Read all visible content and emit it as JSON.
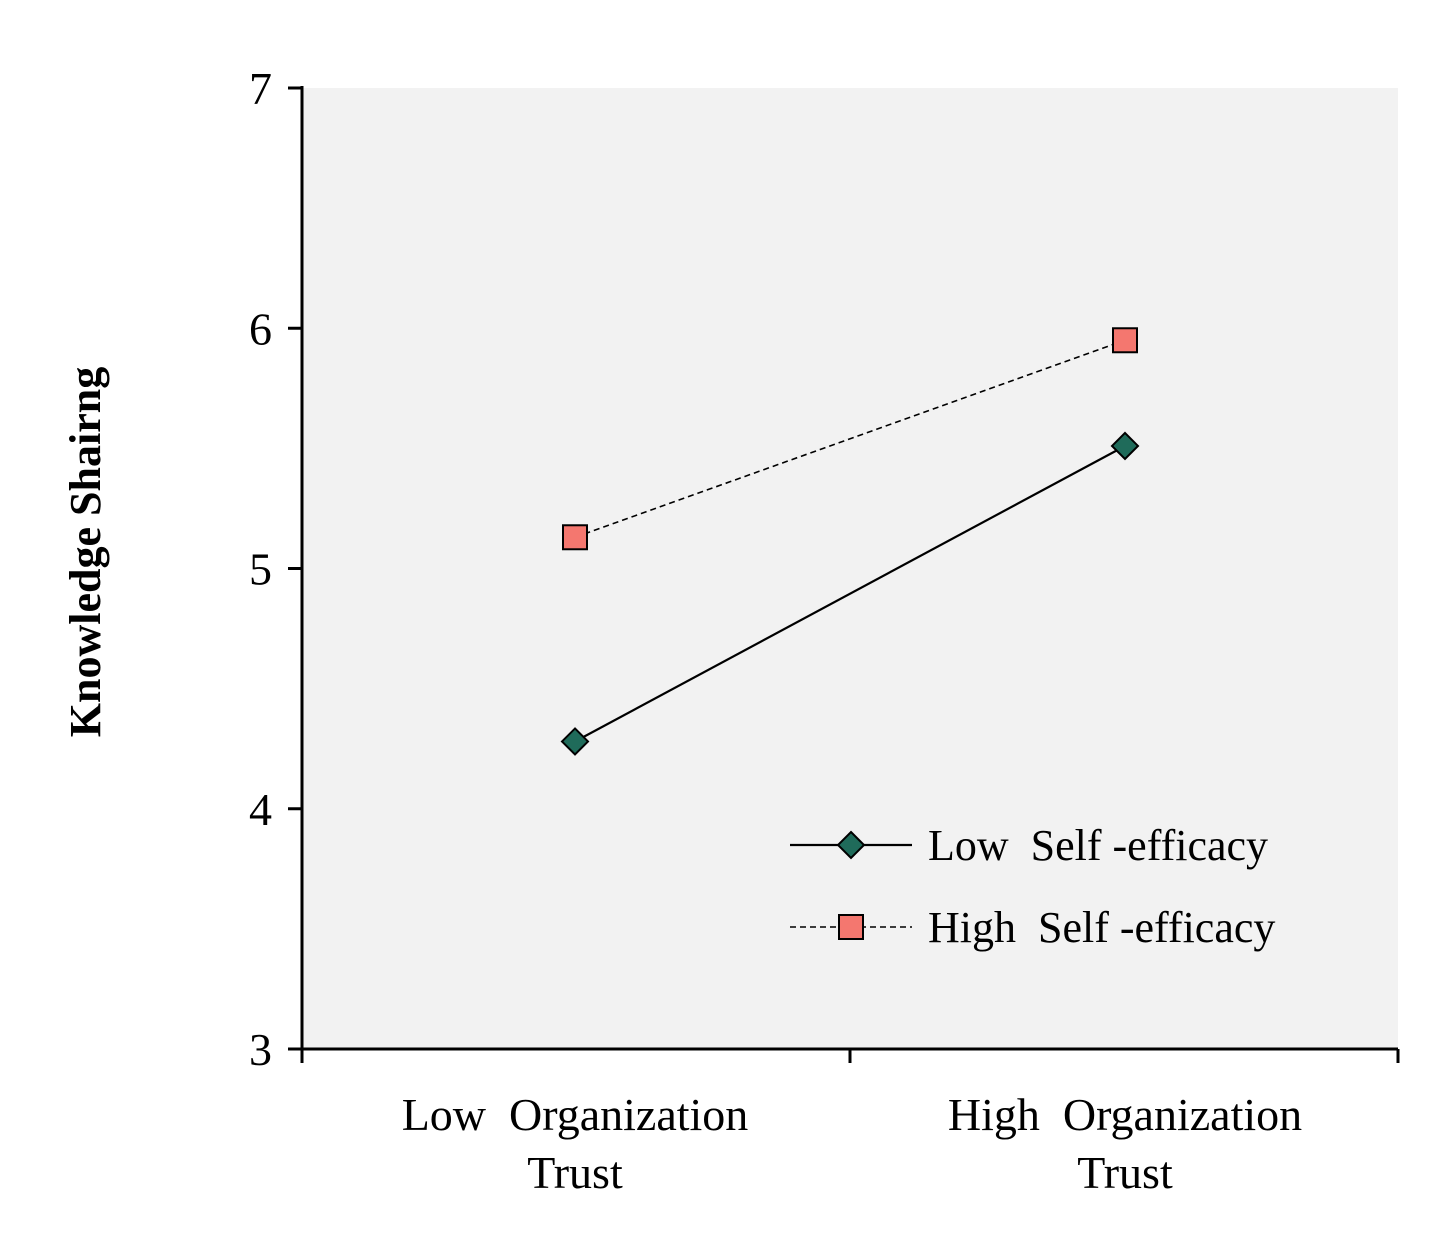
{
  "chart_data": {
    "type": "line",
    "title": "",
    "xlabel": "",
    "ylabel": "Knowledge Shairng",
    "categories": [
      [
        "Low  Organization",
        "Trust"
      ],
      [
        "High  Organization",
        "Trust"
      ]
    ],
    "ylim": [
      3,
      7
    ],
    "yticks": [
      "3",
      "4",
      "5",
      "6",
      "7"
    ],
    "grid": false,
    "legend_position": "bottom-right",
    "plot_background": "#f2f2f2",
    "series": [
      {
        "name": "Low  Self -efficacy",
        "values": [
          4.28,
          5.51
        ],
        "marker": "diamond",
        "line_style": "solid",
        "marker_color": "#1f6b5a"
      },
      {
        "name": "High  Self -efficacy",
        "values": [
          5.13,
          5.95
        ],
        "marker": "square",
        "line_style": "dashed",
        "marker_color": "#f4776f"
      }
    ]
  }
}
